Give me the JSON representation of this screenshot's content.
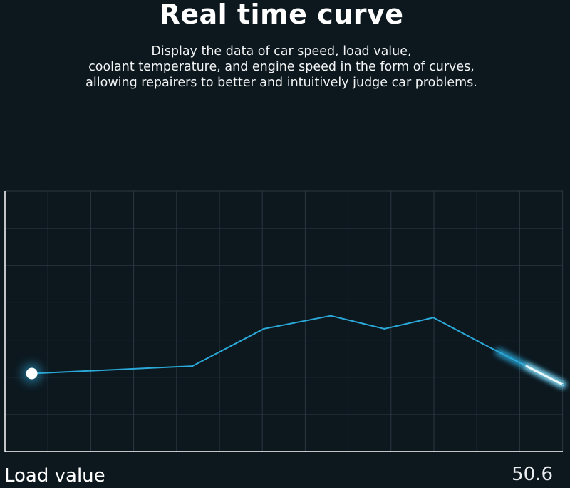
{
  "header": {
    "title": "Real time curve",
    "subtitle_lines": [
      "Display the data of car speed, load value,",
      "coolant temperature, and engine speed in the form of curves,",
      "allowing repairers to better and intuitively judge car problems."
    ]
  },
  "readout": {
    "label": "Load value",
    "value": "50.6"
  },
  "colors": {
    "background": "#0d171e",
    "grid": "#2a3740",
    "axis": "#ffffff",
    "line": "#2aa8d8",
    "glow": "#bff4ff"
  },
  "chart_data": {
    "type": "line",
    "title": "",
    "xlabel": "",
    "ylabel": "",
    "grid": true,
    "xlim": [
      0,
      12.5
    ],
    "ylim": [
      0,
      7
    ],
    "series": [
      {
        "x": [
          0.6,
          4.2,
          5.8,
          7.3,
          8.5,
          9.6,
          10.7,
          12.5
        ],
        "values": [
          2.1,
          2.3,
          3.3,
          3.65,
          3.3,
          3.6,
          2.9,
          1.8
        ]
      }
    ]
  }
}
